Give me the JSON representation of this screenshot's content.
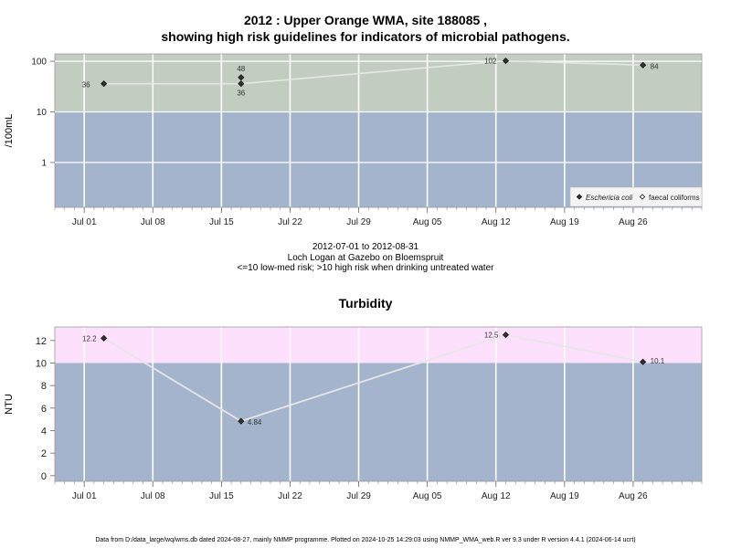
{
  "chart_title_line1": "2012 : Upper Orange WMA, site 188085 ,",
  "chart_title_line2": "showing high risk guidelines for indicators of microbial pathogens.",
  "date_range": "2012-07-01 to 2012-08-31",
  "site_desc": "Loch Logan at Gazebo on Bloemspruit",
  "risk_note": "<=10 low-med risk; >10 high risk when drinking untreated water",
  "turbidity_title": "Turbidity",
  "footer": "Data from D:/data_large/wq/wms.db dated 2024-08-27, mainly NMMP programme. Plotted on 2024-10-25 14:29:03 using NMMP_WMA_web.R ver 9.3 under R version 4.4.1 (2024-06-14 ucrt)",
  "colors": {
    "high_risk_micro": "#c2ccc0",
    "low_risk": "#a3b4cc",
    "high_risk_turb": "#fde0fb",
    "grid": "#ffffff",
    "line": "#e6e6e6",
    "point": "#333333"
  },
  "chart_data": [
    {
      "type": "line",
      "ylabel": "/100mL",
      "yscale": "log",
      "ylim": [
        0.13,
        140
      ],
      "yticks": [
        "1",
        "10",
        "100"
      ],
      "threshold": 10,
      "xlim": [
        "2012-06-28",
        "2012-09-02"
      ],
      "xticks": [
        "Jul 01",
        "Jul 08",
        "Jul 15",
        "Jul 22",
        "Jul 29",
        "Aug 05",
        "Aug 12",
        "Aug 19",
        "Aug 26"
      ],
      "series": [
        {
          "name": "Eschericia coli",
          "marker": "filled-diamond",
          "x": [
            "2012-07-03",
            "2012-07-17",
            "2012-08-13",
            "2012-08-27"
          ],
          "values": [
            36,
            36,
            102,
            84
          ]
        },
        {
          "name": "faecal coliforms",
          "marker": "open-diamond",
          "x": [
            "2012-07-17"
          ],
          "values": [
            48
          ]
        }
      ],
      "legend_position": "bottom-right"
    },
    {
      "type": "line",
      "title": "Turbidity",
      "ylabel": "NTU",
      "ylim": [
        -0.5,
        13.2
      ],
      "yticks": [
        "0",
        "2",
        "4",
        "6",
        "8",
        "10",
        "12"
      ],
      "threshold": 10,
      "xlim": [
        "2012-06-28",
        "2012-09-02"
      ],
      "xticks": [
        "Jul 01",
        "Jul 08",
        "Jul 15",
        "Jul 22",
        "Jul 29",
        "Aug 05",
        "Aug 12",
        "Aug 19",
        "Aug 26"
      ],
      "series": [
        {
          "x": [
            "2012-07-03",
            "2012-07-17",
            "2012-08-13",
            "2012-08-27"
          ],
          "values": [
            12.2,
            4.84,
            12.5,
            10.1
          ],
          "labels": [
            "12.2",
            "4.84",
            "12.5",
            "10.1"
          ]
        }
      ]
    }
  ]
}
